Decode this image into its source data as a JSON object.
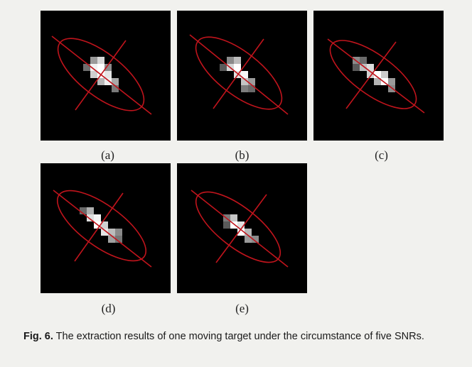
{
  "figure": {
    "panels": [
      {
        "id": "a",
        "label": "(a)"
      },
      {
        "id": "b",
        "label": "(b)"
      },
      {
        "id": "c",
        "label": "(c)"
      },
      {
        "id": "d",
        "label": "(d)"
      },
      {
        "id": "e",
        "label": "(e)"
      }
    ],
    "caption": {
      "prefix": "Fig. 6.",
      "text": " The extraction results of one moving target under the circumstance of five SNRs."
    },
    "colors": {
      "background": "#f1f1ee",
      "panel": "#000000",
      "overlay": "#c0141c"
    }
  }
}
